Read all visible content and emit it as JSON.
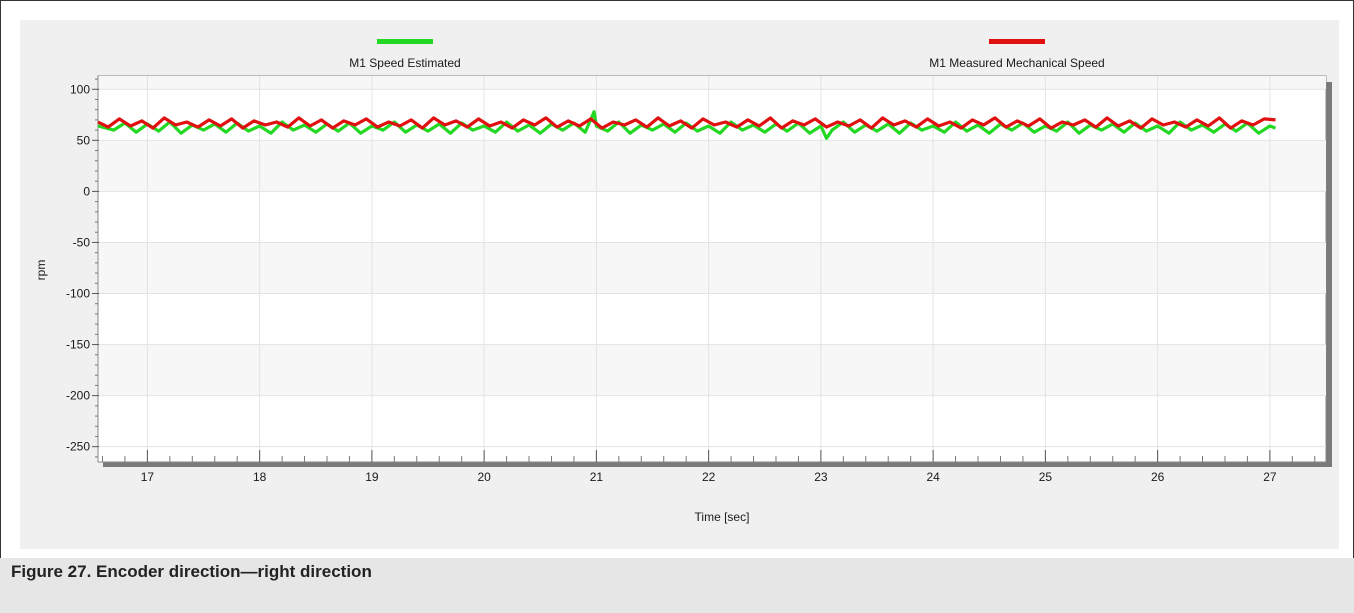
{
  "caption": "Figure 27.  Encoder direction—right direction",
  "chart_data": {
    "type": "line",
    "title": "",
    "xlabel": "Time [sec]",
    "ylabel": "rpm",
    "xlim": [
      16.56,
      27.5
    ],
    "ylim": [
      -265,
      113
    ],
    "xticks": [
      17,
      18,
      19,
      20,
      21,
      22,
      23,
      24,
      25,
      26,
      27
    ],
    "yticks": [
      100,
      50,
      0,
      -50,
      -100,
      -150,
      -200,
      -250
    ],
    "grid": true,
    "legend_placement": "top",
    "series": [
      {
        "name": "M1 Speed Estimated",
        "color": "#22d822",
        "x": [
          16.56,
          16.7,
          16.8,
          16.9,
          17.0,
          17.1,
          17.2,
          17.3,
          17.4,
          17.5,
          17.6,
          17.7,
          17.8,
          17.9,
          18.0,
          18.1,
          18.2,
          18.3,
          18.4,
          18.5,
          18.6,
          18.7,
          18.8,
          18.9,
          19.0,
          19.1,
          19.2,
          19.3,
          19.4,
          19.5,
          19.6,
          19.7,
          19.8,
          19.9,
          20.0,
          20.1,
          20.2,
          20.3,
          20.4,
          20.5,
          20.6,
          20.7,
          20.8,
          20.9,
          20.98,
          21.0,
          21.1,
          21.2,
          21.3,
          21.4,
          21.5,
          21.6,
          21.7,
          21.8,
          21.9,
          22.0,
          22.1,
          22.2,
          22.3,
          22.4,
          22.5,
          22.6,
          22.7,
          22.8,
          22.9,
          23.0,
          23.05,
          23.1,
          23.2,
          23.3,
          23.4,
          23.5,
          23.6,
          23.7,
          23.8,
          23.9,
          24.0,
          24.1,
          24.2,
          24.3,
          24.4,
          24.5,
          24.6,
          24.7,
          24.8,
          24.9,
          25.0,
          25.1,
          25.2,
          25.3,
          25.4,
          25.5,
          25.6,
          25.7,
          25.8,
          25.9,
          26.0,
          26.1,
          26.2,
          26.3,
          26.4,
          26.5,
          26.6,
          26.7,
          26.8,
          26.9,
          27.0,
          27.05
        ],
        "y": [
          64,
          60,
          67,
          58,
          66,
          59,
          68,
          57,
          65,
          60,
          66,
          58,
          67,
          59,
          64,
          57,
          68,
          60,
          65,
          58,
          66,
          59,
          67,
          57,
          64,
          60,
          68,
          58,
          65,
          59,
          66,
          57,
          67,
          60,
          64,
          58,
          68,
          59,
          65,
          57,
          66,
          60,
          67,
          58,
          78,
          64,
          59,
          68,
          57,
          65,
          60,
          66,
          58,
          67,
          59,
          64,
          57,
          68,
          60,
          65,
          58,
          66,
          59,
          67,
          57,
          64,
          52,
          60,
          68,
          58,
          65,
          59,
          66,
          57,
          67,
          60,
          64,
          58,
          68,
          59,
          65,
          57,
          66,
          60,
          67,
          58,
          64,
          59,
          68,
          57,
          65,
          60,
          66,
          58,
          67,
          59,
          64,
          57,
          68,
          60,
          65,
          58,
          66,
          59,
          67,
          57,
          64,
          62
        ]
      },
      {
        "name": "M1 Measured Mechanical Speed",
        "color": "#e01010",
        "x": [
          16.56,
          16.65,
          16.75,
          16.85,
          16.95,
          17.05,
          17.15,
          17.25,
          17.35,
          17.45,
          17.55,
          17.65,
          17.75,
          17.85,
          17.95,
          18.05,
          18.15,
          18.25,
          18.35,
          18.45,
          18.55,
          18.65,
          18.75,
          18.85,
          18.95,
          19.05,
          19.15,
          19.25,
          19.35,
          19.45,
          19.55,
          19.65,
          19.75,
          19.85,
          19.95,
          20.05,
          20.15,
          20.25,
          20.35,
          20.45,
          20.55,
          20.65,
          20.75,
          20.85,
          20.95,
          21.05,
          21.15,
          21.25,
          21.35,
          21.45,
          21.55,
          21.65,
          21.75,
          21.85,
          21.95,
          22.05,
          22.15,
          22.25,
          22.35,
          22.45,
          22.55,
          22.65,
          22.75,
          22.85,
          22.95,
          23.05,
          23.15,
          23.25,
          23.35,
          23.45,
          23.55,
          23.65,
          23.75,
          23.85,
          23.95,
          24.05,
          24.15,
          24.25,
          24.35,
          24.45,
          24.55,
          24.65,
          24.75,
          24.85,
          24.95,
          25.05,
          25.15,
          25.25,
          25.35,
          25.45,
          25.55,
          25.65,
          25.75,
          25.85,
          25.95,
          26.05,
          26.15,
          26.25,
          26.35,
          26.45,
          26.55,
          26.65,
          26.75,
          26.85,
          26.95,
          27.05
        ],
        "y": [
          68,
          63,
          71,
          64,
          69,
          62,
          72,
          65,
          68,
          63,
          70,
          64,
          71,
          62,
          69,
          65,
          68,
          63,
          72,
          64,
          70,
          62,
          69,
          65,
          71,
          63,
          68,
          64,
          70,
          62,
          72,
          65,
          69,
          63,
          71,
          64,
          68,
          62,
          70,
          65,
          72,
          63,
          69,
          64,
          71,
          62,
          68,
          65,
          70,
          63,
          72,
          64,
          69,
          62,
          71,
          65,
          68,
          63,
          70,
          64,
          72,
          62,
          69,
          65,
          71,
          63,
          68,
          64,
          70,
          62,
          72,
          65,
          69,
          63,
          71,
          64,
          68,
          62,
          70,
          65,
          72,
          63,
          69,
          64,
          71,
          62,
          68,
          65,
          70,
          63,
          72,
          64,
          69,
          62,
          71,
          65,
          68,
          63,
          70,
          64,
          72,
          62,
          69,
          65,
          71,
          70
        ]
      }
    ]
  }
}
